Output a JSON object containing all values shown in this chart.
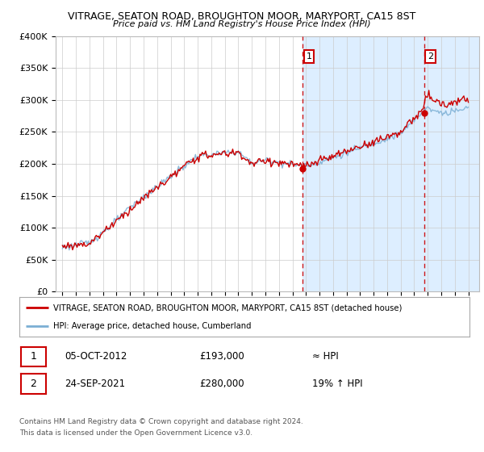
{
  "title": "VITRAGE, SEATON ROAD, BROUGHTON MOOR, MARYPORT, CA15 8ST",
  "subtitle": "Price paid vs. HM Land Registry's House Price Index (HPI)",
  "legend_line1": "VITRAGE, SEATON ROAD, BROUGHTON MOOR, MARYPORT, CA15 8ST (detached house)",
  "legend_line2": "HPI: Average price, detached house, Cumberland",
  "annotation1_label": "1",
  "annotation1_date": "05-OCT-2012",
  "annotation1_price": "£193,000",
  "annotation1_hpi": "≈ HPI",
  "annotation2_label": "2",
  "annotation2_date": "24-SEP-2021",
  "annotation2_price": "£280,000",
  "annotation2_hpi": "19% ↑ HPI",
  "footer1": "Contains HM Land Registry data © Crown copyright and database right 2024.",
  "footer2": "This data is licensed under the Open Government Licence v3.0.",
  "hpi_color": "#7bafd4",
  "price_color": "#cc0000",
  "vline_color": "#cc0000",
  "highlight_color": "#ddeeff",
  "ylim": [
    0,
    400000
  ],
  "yticks": [
    0,
    50000,
    100000,
    150000,
    200000,
    250000,
    300000,
    350000,
    400000
  ],
  "ytick_labels": [
    "£0",
    "£50K",
    "£100K",
    "£150K",
    "£200K",
    "£250K",
    "£300K",
    "£350K",
    "£400K"
  ],
  "purchase1_year": 2012.77,
  "purchase1_value": 193000,
  "purchase2_year": 2021.73,
  "purchase2_value": 280000
}
